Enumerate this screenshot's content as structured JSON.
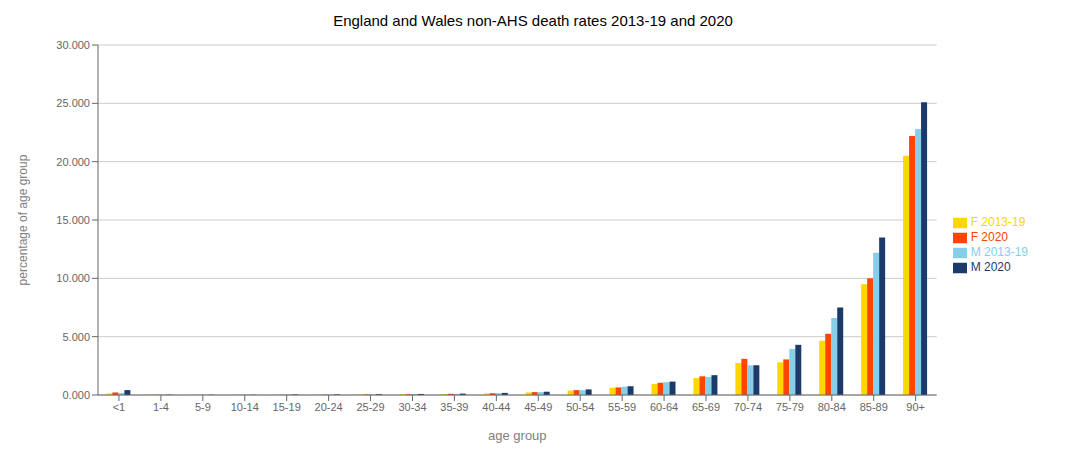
{
  "chart_data": {
    "type": "bar",
    "title": "England and Wales non-AHS death rates  2013-19 and 2020",
    "xlabel": "age group",
    "ylabel": "percentage of age group",
    "categories": [
      "<1",
      "1-4",
      "5-9",
      "10-14",
      "15-19",
      "20-24",
      "25-29",
      "30-34",
      "35-39",
      "40-44",
      "45-49",
      "50-54",
      "55-59",
      "60-64",
      "65-69",
      "70-74",
      "75-79",
      "80-84",
      "85-89",
      "90+"
    ],
    "series": [
      {
        "name": "F 2013-19",
        "color": "#FFD700",
        "values": [
          0.13,
          0.02,
          0.01,
          0.01,
          0.02,
          0.03,
          0.04,
          0.05,
          0.08,
          0.13,
          0.22,
          0.38,
          0.62,
          0.95,
          1.45,
          2.75,
          2.8,
          4.65,
          9.5,
          20.5
        ]
      },
      {
        "name": "F 2020",
        "color": "#FF4500",
        "values": [
          0.22,
          0.02,
          0.01,
          0.01,
          0.02,
          0.03,
          0.05,
          0.07,
          0.1,
          0.15,
          0.25,
          0.42,
          0.65,
          1.05,
          1.6,
          3.1,
          3.05,
          5.25,
          10.0,
          22.2
        ]
      },
      {
        "name": "M 2013-19",
        "color": "#87CEEB",
        "values": [
          0.18,
          0.03,
          0.02,
          0.02,
          0.05,
          0.05,
          0.06,
          0.08,
          0.1,
          0.16,
          0.25,
          0.42,
          0.72,
          1.1,
          1.55,
          2.55,
          3.95,
          6.6,
          12.2,
          22.8
        ]
      },
      {
        "name": "M 2020",
        "color": "#1B3A6B",
        "values": [
          0.42,
          0.03,
          0.02,
          0.02,
          0.05,
          0.05,
          0.07,
          0.09,
          0.12,
          0.18,
          0.28,
          0.48,
          0.75,
          1.15,
          1.7,
          2.55,
          4.3,
          7.5,
          13.5,
          25.1
        ]
      }
    ],
    "ylim": [
      0,
      30
    ],
    "yticks": [
      {
        "value": 0,
        "label": "0.000"
      },
      {
        "value": 5,
        "label": "5.000"
      },
      {
        "value": 10,
        "label": "10.000"
      },
      {
        "value": 15,
        "label": "15.000"
      },
      {
        "value": 20,
        "label": "20.000"
      },
      {
        "value": 25,
        "label": "25.000"
      },
      {
        "value": 30,
        "label": "30.000"
      }
    ],
    "grid": true,
    "legend": "right"
  }
}
